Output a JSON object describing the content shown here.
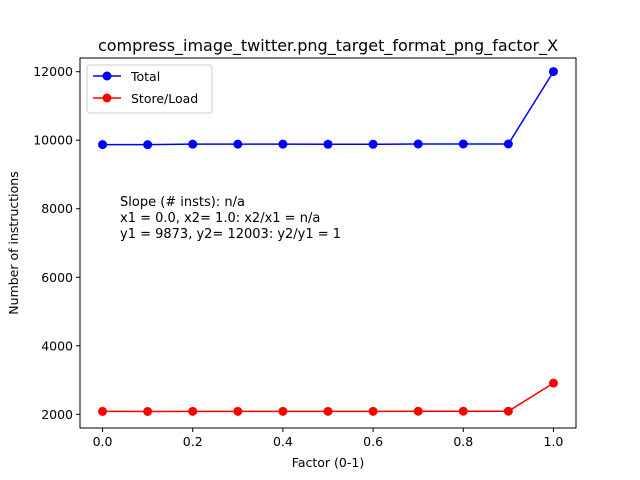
{
  "chart_data": {
    "type": "line",
    "title": "compress_image_twitter.png_target_format_png_factor_X",
    "xlabel": "Factor (0-1)",
    "ylabel": "Number of instructions",
    "xlim": [
      -0.05,
      1.05
    ],
    "ylim": [
      1600,
      12400
    ],
    "x_ticks": [
      0.0,
      0.2,
      0.4,
      0.6,
      0.8,
      1.0
    ],
    "x_tick_labels": [
      "0.0",
      "0.2",
      "0.4",
      "0.6",
      "0.8",
      "1.0"
    ],
    "y_ticks": [
      2000,
      4000,
      6000,
      8000,
      10000,
      12000
    ],
    "y_tick_labels": [
      "2000",
      "4000",
      "6000",
      "8000",
      "10000",
      "12000"
    ],
    "grid": false,
    "legend_position": "top-left",
    "x": [
      0.0,
      0.1,
      0.2,
      0.3,
      0.4,
      0.5,
      0.6,
      0.7,
      0.8,
      0.9,
      1.0
    ],
    "series": [
      {
        "name": "Total",
        "color": "#0000ff",
        "values": [
          9873,
          9870,
          9885,
          9885,
          9885,
          9882,
          9882,
          9890,
          9890,
          9890,
          12003
        ]
      },
      {
        "name": "Store/Load",
        "color": "#ff0000",
        "values": [
          2085,
          2083,
          2087,
          2087,
          2087,
          2086,
          2086,
          2090,
          2090,
          2090,
          2910
        ]
      }
    ],
    "annotation_lines": [
      "Slope (# insts): n/a",
      "x1 = 0.0, x2= 1.0: x2/x1 = n/a",
      "y1 = 9873, y2= 12003: y2/y1 = 1"
    ]
  }
}
